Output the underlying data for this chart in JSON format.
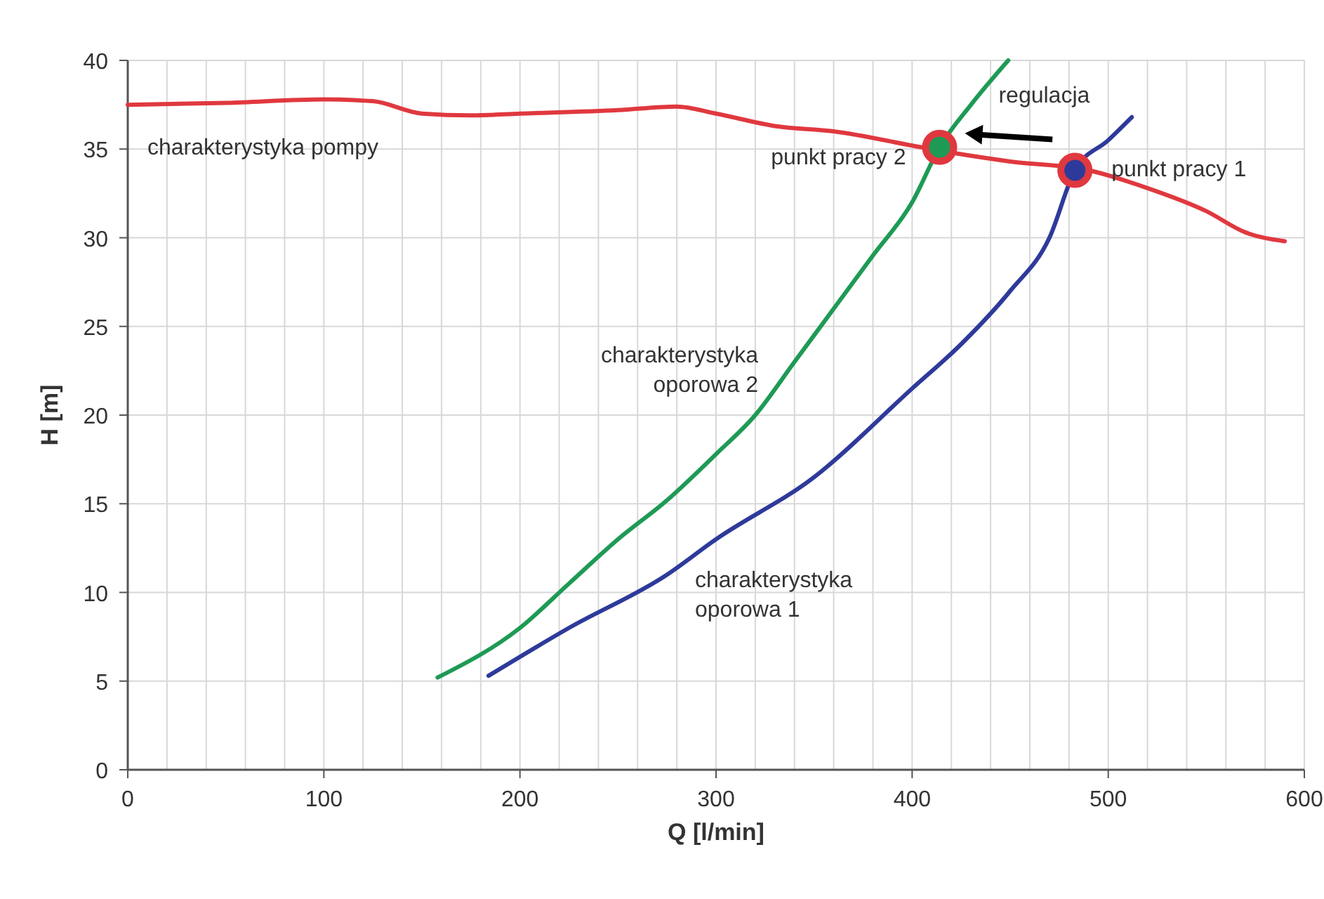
{
  "chart_data": {
    "type": "line",
    "xlabel": "Q [l/min]",
    "ylabel": "H [m]",
    "xlim": [
      0,
      600
    ],
    "ylim": [
      0,
      40
    ],
    "xticks": [
      0,
      {
        "value": 20,
        "label": null
      },
      {
        "value": 40,
        "label": null
      },
      {
        "value": 60,
        "label": null
      },
      {
        "value": 80,
        "label": null
      },
      100,
      {
        "value": 120,
        "label": null
      },
      {
        "value": 140,
        "label": null
      },
      {
        "value": 160,
        "label": null
      },
      {
        "value": 180,
        "label": null
      },
      200,
      {
        "value": 220,
        "label": null
      },
      {
        "value": 240,
        "label": null
      },
      {
        "value": 260,
        "label": null
      },
      {
        "value": 280,
        "label": null
      },
      300,
      {
        "value": 320,
        "label": null
      },
      {
        "value": 340,
        "label": null
      },
      {
        "value": 360,
        "label": null
      },
      {
        "value": 380,
        "label": null
      },
      400,
      {
        "value": 420,
        "label": null
      },
      {
        "value": 440,
        "label": null
      },
      {
        "value": 460,
        "label": null
      },
      {
        "value": 480,
        "label": null
      },
      500,
      {
        "value": 520,
        "label": null
      },
      {
        "value": 540,
        "label": null
      },
      {
        "value": 560,
        "label": null
      },
      {
        "value": 580,
        "label": null
      },
      600
    ],
    "yticks": [
      0,
      5,
      10,
      15,
      20,
      25,
      30,
      35,
      40
    ],
    "grid": true,
    "marker": "none",
    "line_style": "solid",
    "series": [
      {
        "name": "charakterystyka pompy",
        "color": "#e0383f",
        "x": [
          0,
          50,
          100,
          125,
          150,
          175,
          200,
          250,
          280,
          300,
          330,
          360,
          400,
          420,
          450,
          490,
          520,
          550,
          570,
          590
        ],
        "values": [
          37.5,
          37.6,
          37.8,
          37.7,
          37.0,
          36.9,
          37.0,
          37.2,
          37.4,
          37.0,
          36.3,
          36.0,
          35.2,
          34.8,
          34.3,
          33.8,
          32.8,
          31.5,
          30.3,
          29.8
        ]
      },
      {
        "name": "charakterystyka oporowa 2",
        "color": "#1e9a55",
        "x": [
          158,
          200,
          225,
          250,
          275,
          300,
          320,
          340,
          360,
          380,
          400,
          414,
          430,
          449
        ],
        "values": [
          5.2,
          8,
          10.5,
          13,
          15.2,
          17.8,
          20,
          23,
          26,
          29,
          32,
          35.1,
          37.5,
          40
        ]
      },
      {
        "name": "charakterystyka oporowa 1",
        "color": "#2e3a9a",
        "x": [
          184,
          225,
          275,
          300,
          350,
          400,
          425,
          450,
          470,
          483,
          500,
          512
        ],
        "values": [
          5.3,
          8,
          11,
          13,
          16.5,
          21.5,
          24,
          27,
          30,
          33.8,
          35.5,
          36.8
        ]
      },
      {
        "type": "scatter",
        "x": [
          414,
          483
        ],
        "values": [
          35.1,
          33.8
        ],
        "colors": [
          "#1e9a55",
          "#2e3a9a"
        ],
        "marker": "circle"
      }
    ],
    "annotations": [
      {
        "text": "punkt pracy 2",
        "x": 414,
        "y": 35.1
      },
      {
        "text": "punkt pracy 1",
        "x": 483,
        "y": 33.8
      },
      "regulacja"
    ]
  }
}
